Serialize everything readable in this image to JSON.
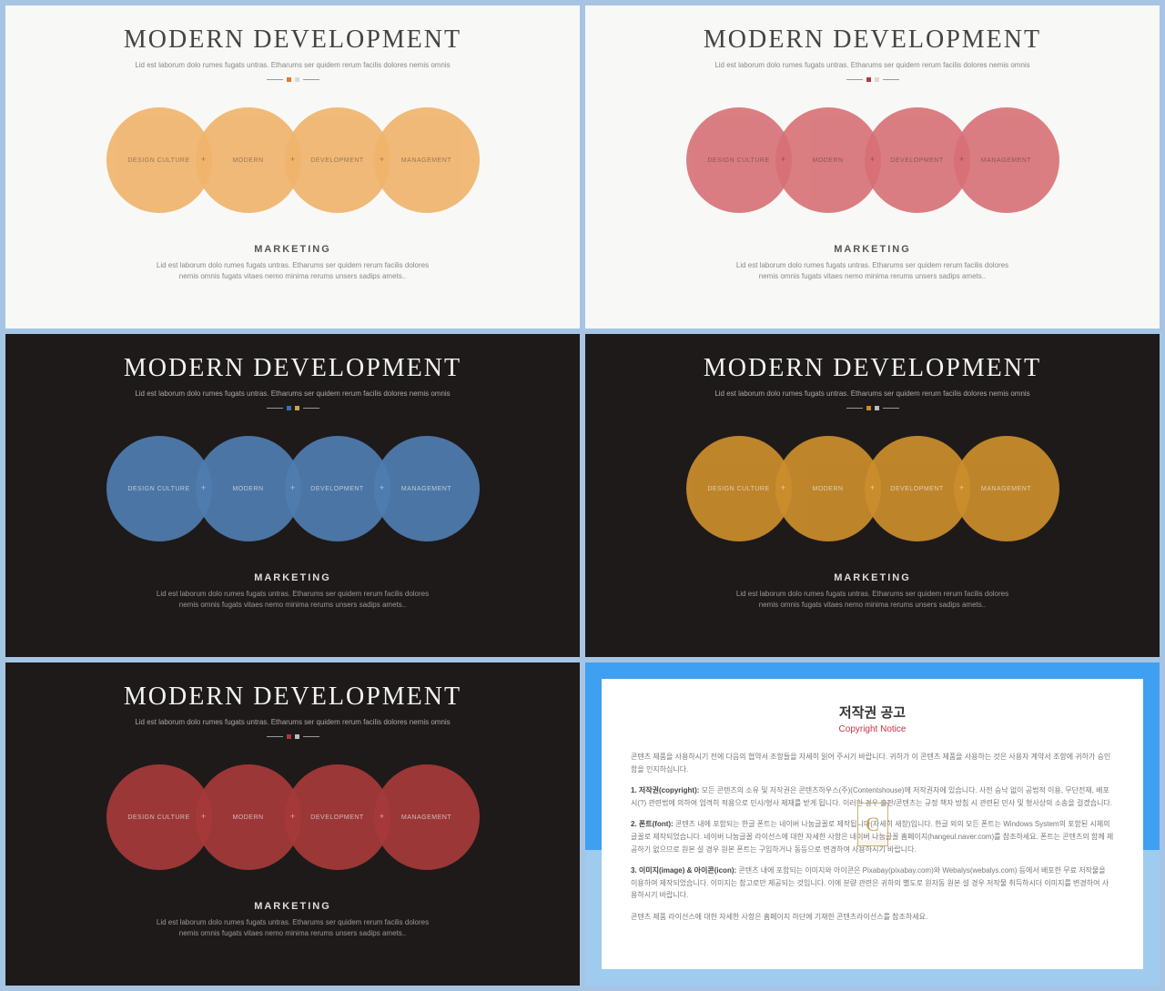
{
  "common": {
    "title": "MODERN DEVELOPMENT",
    "subtitle": "Lid est laborum dolo rumes fugats untras. Etharums ser quidem rerum facilis dolores nemis omnis",
    "circle_labels": [
      "DESIGN CULTURE",
      "MODERN",
      "DEVELOPMENT",
      "MANAGEMENT"
    ],
    "plus": "+",
    "section_title": "MARKETING",
    "section_body": "Lid est laborum dolo rumes fugats untras. Etharums ser quidem rerum facilis dolores nemis omnis fugats vitaes nemo minima rerums unsers sadips amets..",
    "watermark": "C"
  },
  "variants": [
    {
      "bg": "light",
      "circle_color": "#f0b46d",
      "circle_opacity": 0.92,
      "accent_squares": [
        "#e07a2e",
        "#d9d9d9"
      ]
    },
    {
      "bg": "light",
      "circle_color": "#d77076",
      "circle_opacity": 0.9,
      "accent_squares": [
        "#b23a3a",
        "#d9d9d9"
      ]
    },
    {
      "bg": "dark",
      "circle_color": "#4f7db0",
      "circle_opacity": 0.92,
      "accent_squares": [
        "#3d6fa6",
        "#c9a24a"
      ]
    },
    {
      "bg": "dark",
      "circle_color": "#cc8e2c",
      "circle_opacity": 0.92,
      "accent_squares": [
        "#c98a2a",
        "#bbbbbb"
      ]
    },
    {
      "bg": "dark",
      "circle_color": "#a63a3a",
      "circle_opacity": 0.92,
      "accent_squares": [
        "#a63a3a",
        "#bbbbbb"
      ]
    }
  ],
  "copyright": {
    "title": "저작권 공고",
    "subtitle": "Copyright Notice",
    "intro": "콘텐츠 제품을 사용하시기 전에 다음의 협약서 조항들을 자세히 읽어 주시기 바랍니다. 귀하가 이 콘텐츠 제품을 사용하는 것은 사용자 계약서 조항에 귀하가 승인함을 인지하십니다.",
    "p1_label": "1. 저작권(copyright):",
    "p1": "모든 콘텐츠의 소유 및 저작권은 콘텐츠하우스(주)(Contentshouse)에 저작권자에 있습니다. 사전 승낙 없이 공법적 이용, 무단전재, 배포 시(?) 관련법에 의하여 엄격히 적용으로 민사/형사 제재를 받게 됩니다. 이러한 경우 출판/콘텐츠는 규정 책자 방침 시 관련된 민사 및 형사상의 소송을 걸겠습니다.",
    "p2_label": "2. 폰트(font):",
    "p2": "콘텐츠 내에 포함되는 한글 폰트는 네이버 나눔글꼴로 제작됩니다(자세히 새창)입니다. 한글 외의 모든 폰트는 Windows System의 포함된 시체의 글꼴로 제작되었습니다. 네이버 나눔글꼴 라이선스에 대한 자세한 사항은 네이버 나눔글꼴 홈페이지(hangeul.naver.com)를 참조하세요. 폰트는 콘텐츠의 함께 제공하기 없으므로 원본 설 경우 원본 폰트는 구입하거나 동등으로 변경하여 사용하시기 바랍니다.",
    "p3_label": "3. 이미지(image) & 아이콘(icon):",
    "p3": "콘텐츠 내에 포함되는 이미지와 아이콘은 Pixabay(pixabay.com)와 Webalys(webalys.com) 등에서 배포한 무료 저작물을 이용하여 제작되었습니다. 이미지는 참고로만 제공되는 것입니다. 이에 분량 관련은 귀하의 별도로 원자동 원본 설 경우 저작물 취득하시더 이미지를 변경하여 사용하시기 바랍니다.",
    "footer": "콘텐츠 제품 라이선스에 대한 자세한 사항은 홈페이지 하단에 기재한 콘텐츠라이선스를 참조하세요."
  },
  "layout": {
    "page_bg": "#a6c4e4",
    "copyright_outer": "#3f9ff0",
    "copyright_lower": "#9fcbef",
    "card_bg": "#ffffff"
  }
}
